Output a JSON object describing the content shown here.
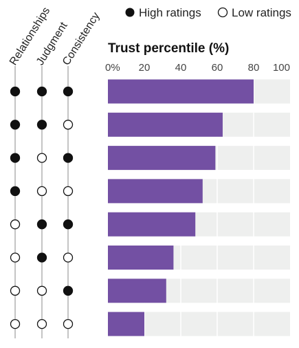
{
  "legend": {
    "high_label": "High ratings",
    "low_label": "Low ratings"
  },
  "chart_data": {
    "type": "bar",
    "orientation": "horizontal",
    "title": "Trust percentile (%)",
    "xlabel": "",
    "ylabel": "",
    "xlim": [
      0,
      100
    ],
    "ticks": [
      "0%",
      "20",
      "40",
      "60",
      "80",
      "100"
    ],
    "tick_values": [
      0,
      20,
      40,
      60,
      80,
      100
    ],
    "rating_dimensions": [
      "Relationships",
      "Judgment",
      "Consistency"
    ],
    "rows": [
      {
        "ratings": [
          "high",
          "high",
          "high"
        ],
        "value": 80
      },
      {
        "ratings": [
          "high",
          "high",
          "low"
        ],
        "value": 63
      },
      {
        "ratings": [
          "high",
          "low",
          "high"
        ],
        "value": 59
      },
      {
        "ratings": [
          "high",
          "low",
          "low"
        ],
        "value": 52
      },
      {
        "ratings": [
          "low",
          "high",
          "high"
        ],
        "value": 48
      },
      {
        "ratings": [
          "low",
          "high",
          "low"
        ],
        "value": 36
      },
      {
        "ratings": [
          "low",
          "low",
          "high"
        ],
        "value": 32
      },
      {
        "ratings": [
          "low",
          "low",
          "low"
        ],
        "value": 20
      }
    ],
    "colors": {
      "bar": "#7350a3",
      "track": "#eeefee",
      "high_dot": "#111111",
      "low_dot": "#ffffff"
    },
    "grid": true,
    "legend_position": "top-right"
  }
}
